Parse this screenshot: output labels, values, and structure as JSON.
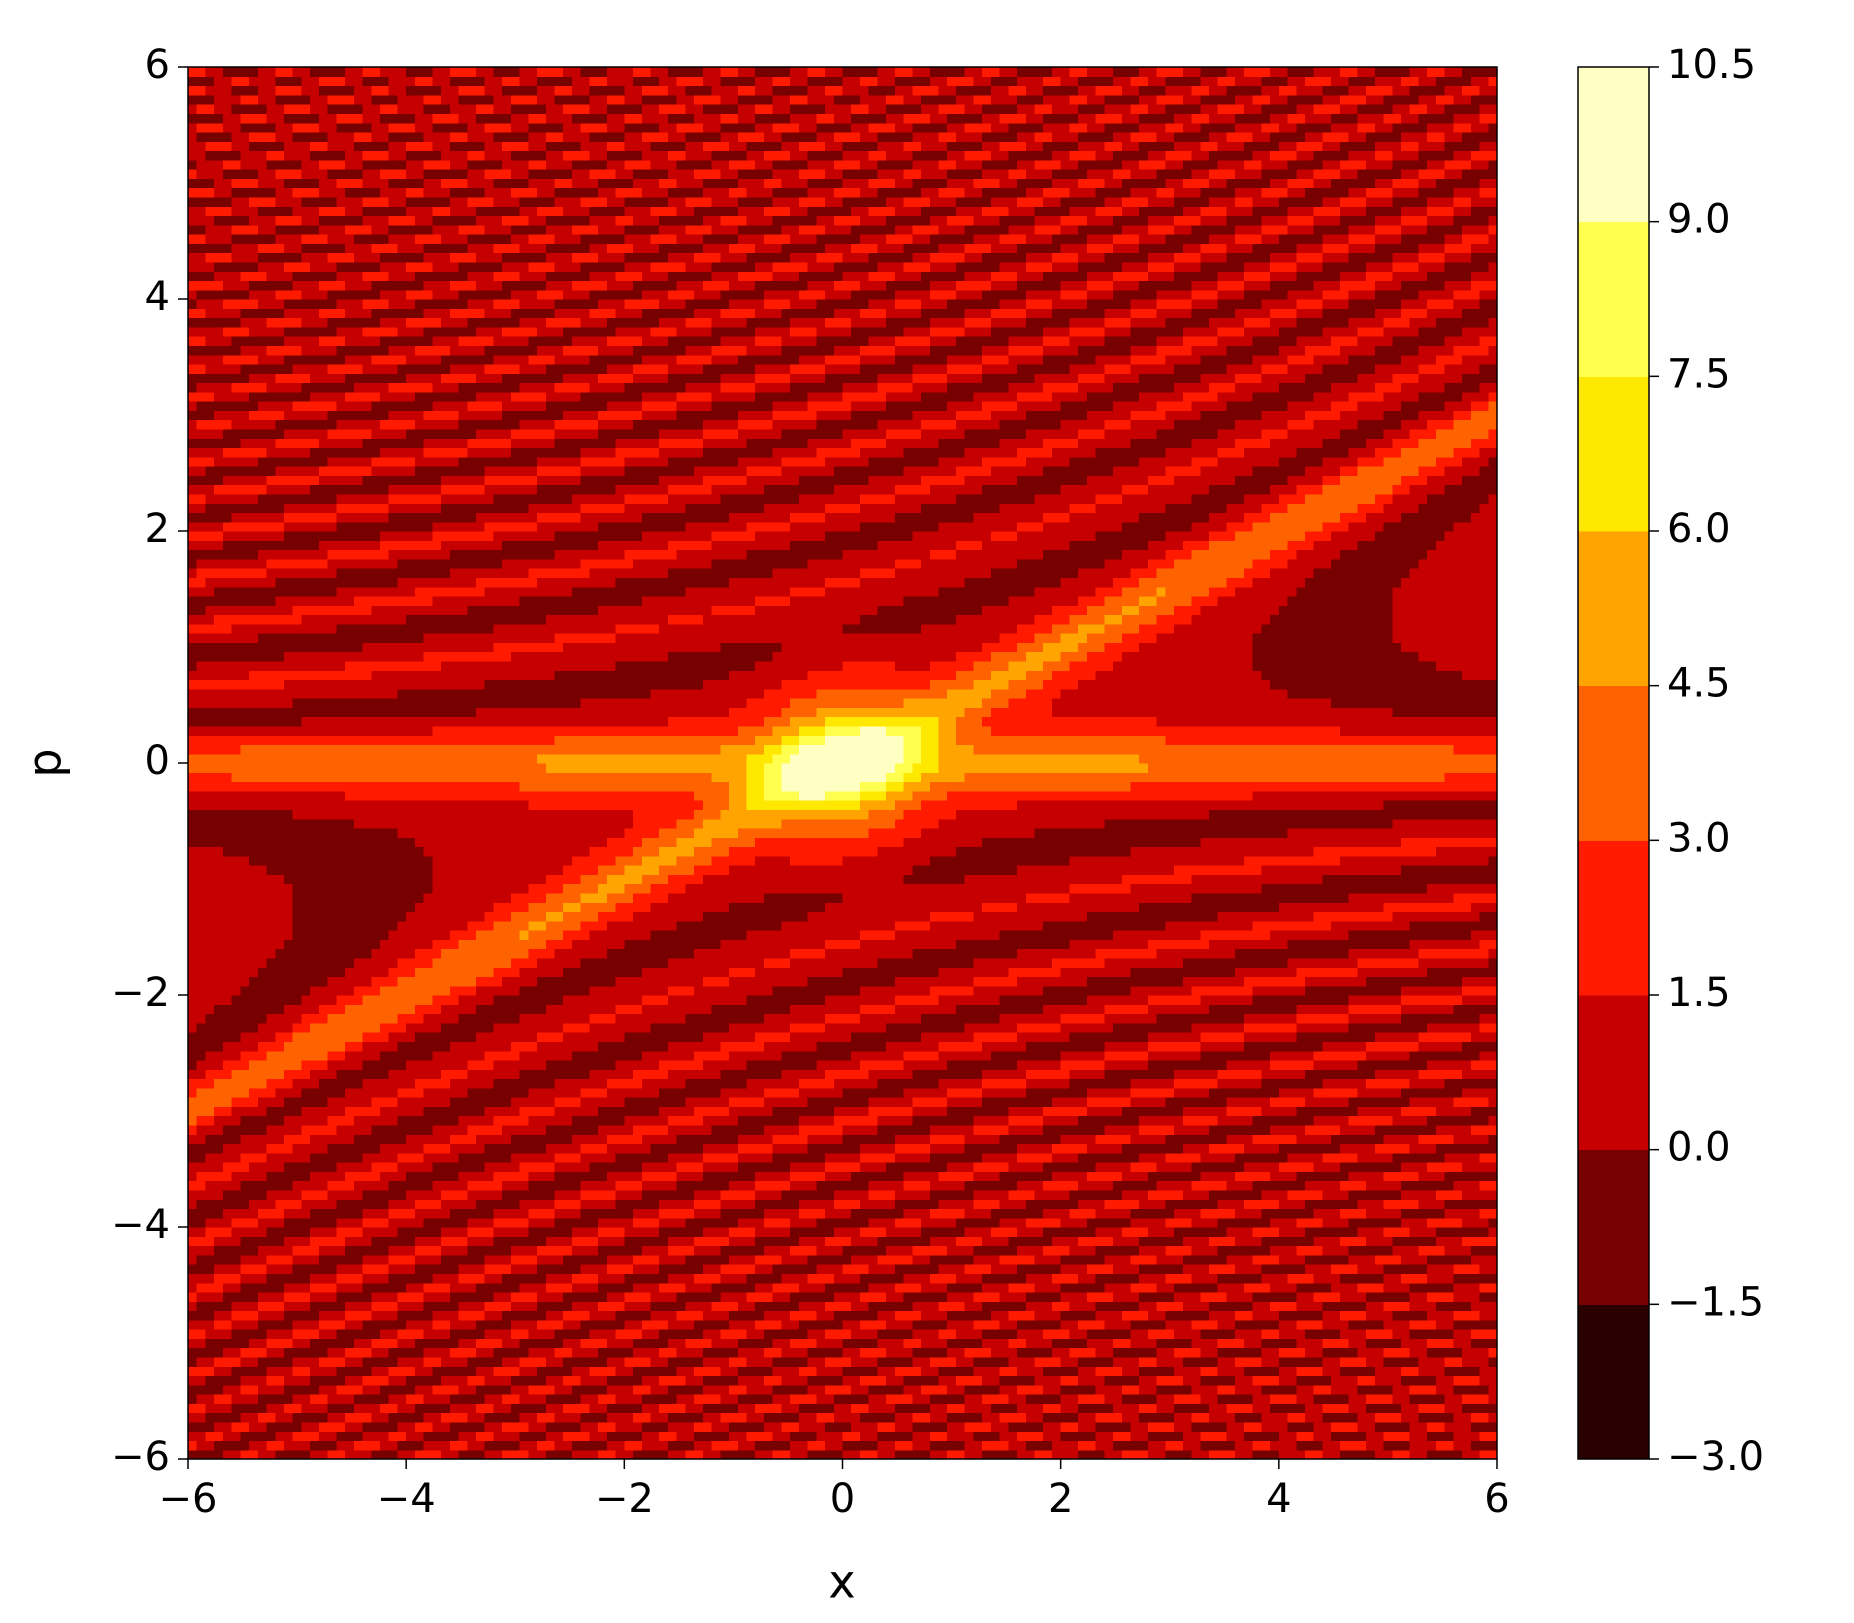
{
  "chart_data": {
    "type": "contour",
    "xlabel": "x",
    "ylabel": "p",
    "xlim": [
      -6,
      6
    ],
    "ylim": [
      -6,
      6
    ],
    "xticks": [
      {
        "value": -6,
        "label": "−6"
      },
      {
        "value": -4,
        "label": "−4"
      },
      {
        "value": -2,
        "label": "−2"
      },
      0,
      2,
      4,
      6
    ],
    "yticks": [
      {
        "value": -6,
        "label": "−6"
      },
      {
        "value": -4,
        "label": "−4"
      },
      {
        "value": -2,
        "label": "−2"
      },
      0,
      2,
      4,
      6
    ],
    "levels": [
      {
        "value": -3,
        "label": "−3.0"
      },
      {
        "value": -1.5,
        "label": "−1.5"
      },
      {
        "value": 0,
        "label": "0.0"
      },
      1.5,
      {
        "value": 3,
        "label": "3.0"
      },
      4.5,
      {
        "value": 6,
        "label": "6.0"
      },
      7.5,
      {
        "value": 9,
        "label": "9.0"
      },
      10.5
    ],
    "colors": [
      "#2b0000",
      "#770000",
      "#c60000",
      "#ff1a00",
      "#ff6200",
      "#ffa400",
      "#ffe800",
      "#ffff50",
      "#ffffc4"
    ]
  }
}
